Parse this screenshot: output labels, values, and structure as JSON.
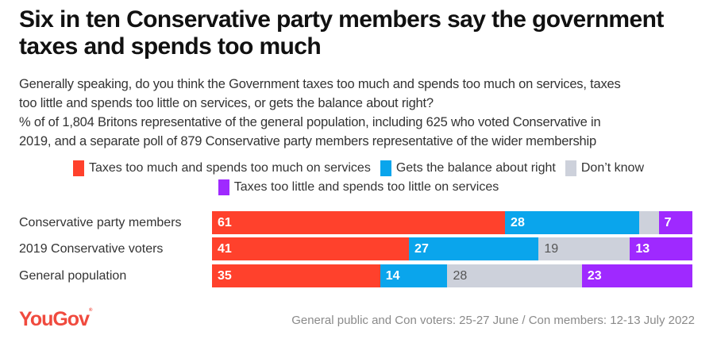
{
  "title": "Six in ten Conservative party members say the government taxes and spends too much",
  "subtitle_lines": [
    "Generally speaking, do you think the Government taxes too much and spends too much on services, taxes",
    "too little and spends too little on services, or gets the balance about right?",
    "% of of 1,804 Britons representative of the general population, including 625 who voted Conservative in",
    "2019, and a separate poll of 879 Conservative party members representative of the wider membership"
  ],
  "legend": [
    {
      "label": "Taxes too much and spends too much on services",
      "color": "#ff412c"
    },
    {
      "label": "Gets the balance about right",
      "color": "#0aa5ec"
    },
    {
      "label": "Don’t know",
      "color": "#cdd1db"
    },
    {
      "label": "Taxes too little and spends too little on services",
      "color": "#9f29ff"
    }
  ],
  "footer": {
    "logo": "YouGov",
    "note": "General public and Con voters: 25-27 June / Con members: 12-13 July 2022"
  },
  "chart_data": {
    "type": "bar",
    "orientation": "horizontal",
    "stacked": true,
    "title": "Six in ten Conservative party members say the government taxes and spends too much",
    "xlabel": "",
    "ylabel": "",
    "xlim": [
      0,
      100
    ],
    "categories": [
      "Conservative party members",
      "2019 Conservative voters",
      "General population"
    ],
    "series": [
      {
        "name": "Taxes too much and spends too much on services",
        "color": "#ff412c",
        "values": [
          61,
          41,
          35
        ],
        "labels": [
          "61",
          "41",
          "35"
        ]
      },
      {
        "name": "Gets the balance about right",
        "color": "#0aa5ec",
        "values": [
          28,
          27,
          14
        ],
        "labels": [
          "28",
          "27",
          "14"
        ]
      },
      {
        "name": "Don’t know",
        "color": "#cdd1db",
        "values": [
          4,
          19,
          28
        ],
        "labels": [
          "",
          "19",
          "28"
        ]
      },
      {
        "name": "Taxes too little and spends too little on services",
        "color": "#9f29ff",
        "values": [
          7,
          13,
          23
        ],
        "labels": [
          "7",
          "13",
          "23"
        ]
      }
    ],
    "legend_position": "top-center",
    "grid": false
  }
}
